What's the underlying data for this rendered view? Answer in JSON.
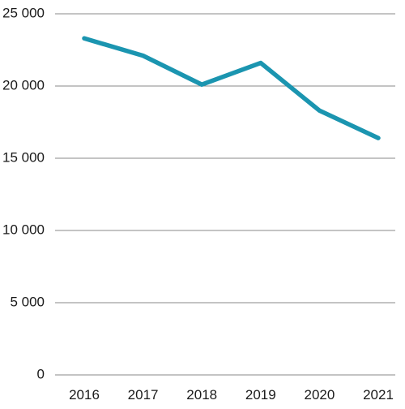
{
  "chart_data": {
    "type": "line",
    "title": "",
    "xlabel": "",
    "ylabel": "",
    "categories": [
      "2016",
      "2017",
      "2018",
      "2019",
      "2020",
      "2021"
    ],
    "series": [
      {
        "values": [
          23300,
          22100,
          20100,
          21600,
          18300,
          16400
        ]
      }
    ],
    "ylim": [
      0,
      25000
    ],
    "yticks": [
      0,
      5000,
      10000,
      15000,
      20000,
      25000
    ],
    "ytick_labels": [
      "0",
      "5 000",
      "10 000",
      "15 000",
      "20 000",
      "25 000"
    ],
    "grid": true,
    "legend": "none",
    "colors": {
      "line": "#1b95b0",
      "grid": "#8a8a8a"
    }
  }
}
